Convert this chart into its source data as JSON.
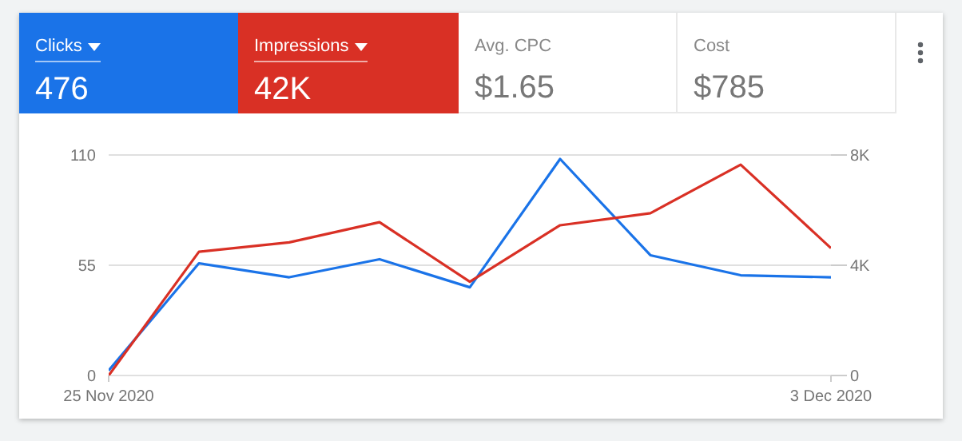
{
  "chart_data": [
    {
      "type": "other",
      "categories": [
        "Clicks",
        "Impressions",
        "Avg. CPC",
        "Cost"
      ],
      "value_labels": [
        "476",
        "42K",
        "$1.65",
        "$785"
      ],
      "colors": [
        "#1a73e8",
        "#d93025",
        null,
        null
      ]
    },
    {
      "type": "line",
      "x": [
        "2020-11-25",
        "2020-11-26",
        "2020-11-27",
        "2020-11-28",
        "2020-11-29",
        "2020-11-30",
        "2020-12-01",
        "2020-12-02",
        "2020-12-03"
      ],
      "xlim": [
        "2020-11-25",
        "2020-12-03"
      ],
      "xticks": [
        {
          "value": "2020-11-25",
          "label": "25 Nov 2020"
        },
        {
          "value": "2020-12-03",
          "label": "3 Dec 2020"
        }
      ],
      "series": [
        {
          "color": "#1a73e8",
          "values": [
            2.5,
            56,
            49,
            58,
            44,
            108,
            60,
            50,
            49
          ]
        },
        {
          "color": "#d93025",
          "axis": "y2",
          "values": [
            0,
            4490,
            4830,
            5560,
            3400,
            5450,
            5890,
            7650,
            4620
          ]
        }
      ],
      "ylim": [
        0,
        110
      ],
      "yticks": [
        0,
        55,
        110
      ],
      "y2lim": [
        0,
        8000
      ],
      "y2ticks": [
        0,
        {
          "value": 4000,
          "label": "4K"
        },
        {
          "value": 8000,
          "label": "8K"
        }
      ],
      "grid": "y",
      "legend": false,
      "marker": "none",
      "line_style": "solid"
    }
  ]
}
